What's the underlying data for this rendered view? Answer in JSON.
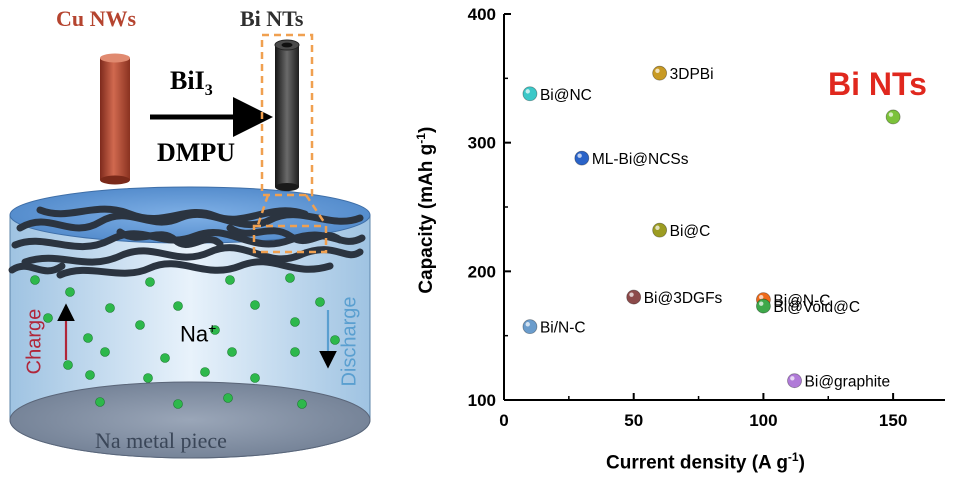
{
  "schematic": {
    "cu_label": "Cu NWs",
    "bi_label": "Bi NTs",
    "reagent": "BiI",
    "reagent_sub": "3",
    "solvent": "DMPU",
    "ion": "Na",
    "ion_sup": "+",
    "charge": "Charge",
    "discharge": "Discharge",
    "base": "Na metal piece",
    "colors": {
      "cu": "#b5442f",
      "bi": "#2f2f2f",
      "dash": "#f0a050",
      "dots": "#2db84b",
      "charge": "#b0263a",
      "discharge": "#5a9fd0"
    }
  },
  "highlight": {
    "text": "Bi NTs",
    "color": "#e0281e"
  },
  "chart_data": {
    "type": "scatter",
    "xlabel": "Current density (A g",
    "xlabel_sup": "-1",
    "xlabel_end": ")",
    "ylabel": "Capacity (mAh g",
    "ylabel_sup": "-1",
    "ylabel_end": ")",
    "xlim": [
      0,
      170
    ],
    "ylim": [
      100,
      400
    ],
    "xticks": [
      "0",
      "50",
      "100",
      "150"
    ],
    "yticks": [
      "100",
      "200",
      "300",
      "400"
    ],
    "points": [
      {
        "label": "Bi@NC",
        "x": 10,
        "y": 338,
        "color": "#3cc8c8"
      },
      {
        "label": "3DPBi",
        "x": 60,
        "y": 354,
        "color": "#c89a24"
      },
      {
        "label": "ML-Bi@NCSs",
        "x": 30,
        "y": 288,
        "color": "#2a63c8"
      },
      {
        "label": "Bi@C",
        "x": 60,
        "y": 232,
        "color": "#9c9c22"
      },
      {
        "label": "Bi@3DGFs",
        "x": 50,
        "y": 180,
        "color": "#8c4a4a"
      },
      {
        "label": "Bi@N-C",
        "x": 100,
        "y": 178,
        "color": "#ee6a1a"
      },
      {
        "label": "Bi@Void@C",
        "x": 100,
        "y": 173,
        "color": "#3ea84a"
      },
      {
        "label": "Bi/N-C",
        "x": 10,
        "y": 157,
        "color": "#6a9ccc"
      },
      {
        "label": "Bi@graphite",
        "x": 112,
        "y": 115,
        "color": "#b07ad8"
      },
      {
        "label": "",
        "x": 150,
        "y": 320,
        "color": "#7cc23a"
      }
    ]
  }
}
